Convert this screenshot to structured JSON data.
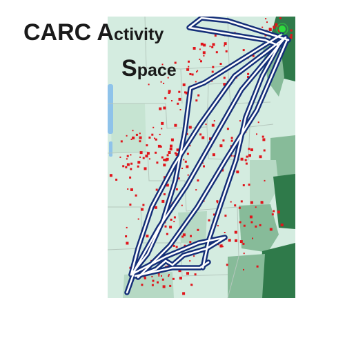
{
  "title": {
    "line1": [
      {
        "text": "CARC",
        "style": "big"
      },
      {
        "text": " ",
        "style": "big"
      },
      {
        "text": "A",
        "style": "big"
      },
      {
        "text": "ctivity",
        "style": "small"
      }
    ],
    "line2": [
      {
        "text": "S",
        "style": "big"
      },
      {
        "text": "pace",
        "style": "small"
      }
    ]
  },
  "colors": {
    "background": "#ffffff",
    "map_base": "#d4ece0",
    "region_light": "#b6d9c4",
    "region_mid": "#87bb99",
    "region_dark": "#2f7a4a",
    "water": "#8fc3ea",
    "boundary": "#b5c7bd",
    "route_outline": "#142e78",
    "route_inner": "#ffffff",
    "point": "#e0151b",
    "marker": "#2edc3c"
  },
  "legend_markers": [
    {
      "name": "location-point",
      "color": "#e0151b"
    },
    {
      "name": "home-marker",
      "color": "#2edc3c"
    }
  ]
}
